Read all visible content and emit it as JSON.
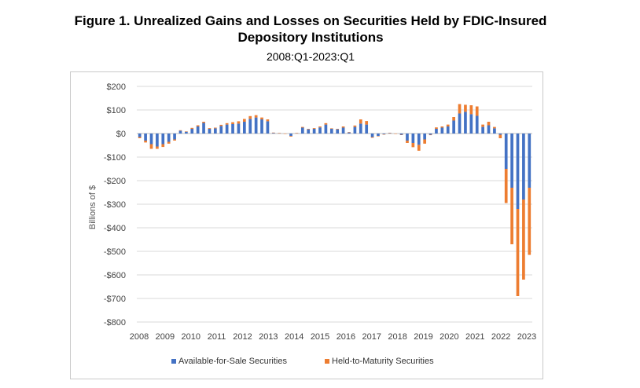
{
  "chart_data": {
    "type": "bar",
    "stacked": true,
    "title_line1": "Figure 1. Unrealized Gains and Losses on Securities Held by FDIC-Insured",
    "title_line2": "Depository Institutions",
    "subtitle": "2008:Q1-2023:Q1",
    "ylabel": "Billions of $",
    "ylim": [
      -800,
      200
    ],
    "yticks": [
      200,
      100,
      0,
      -100,
      -200,
      -300,
      -400,
      -500,
      -600,
      -700,
      -800
    ],
    "ytick_labels": [
      "$200",
      "$100",
      "$0",
      "-$100",
      "-$200",
      "-$300",
      "-$400",
      "-$500",
      "-$600",
      "-$700",
      "-$800"
    ],
    "x_labels": [
      "2008",
      "2009",
      "2010",
      "2011",
      "2012",
      "2013",
      "2014",
      "2015",
      "2016",
      "2017",
      "2018",
      "2019",
      "2020",
      "2021",
      "2022",
      "2023"
    ],
    "grid": true,
    "legend_position": "bottom",
    "colors": {
      "afs": "#4472C4",
      "htm": "#ED7D31",
      "grid": "#d9d9d9",
      "axis": "#bfbfbf"
    },
    "series": [
      {
        "name": "Available-for-Sale Securities",
        "values": [
          -15,
          -30,
          -45,
          -55,
          -45,
          -35,
          -25,
          12,
          8,
          20,
          30,
          45,
          20,
          22,
          32,
          38,
          40,
          42,
          50,
          62,
          68,
          60,
          52,
          3,
          2,
          0,
          -10,
          2,
          25,
          18,
          20,
          26,
          38,
          20,
          18,
          25,
          5,
          28,
          42,
          38,
          -15,
          -10,
          -3,
          2,
          0,
          -5,
          -30,
          -40,
          -48,
          -25,
          -5,
          20,
          25,
          30,
          55,
          85,
          92,
          82,
          75,
          28,
          35,
          22,
          -5,
          -150,
          -230,
          -320,
          -280,
          -230
        ]
      },
      {
        "name": "Held-to-Maturity Securities",
        "values": [
          -5,
          -8,
          -20,
          -10,
          -12,
          -8,
          -5,
          2,
          1,
          4,
          5,
          5,
          3,
          3,
          5,
          6,
          8,
          10,
          12,
          12,
          10,
          8,
          8,
          1,
          0,
          0,
          -3,
          0,
          3,
          2,
          3,
          4,
          6,
          2,
          2,
          5,
          1,
          6,
          18,
          15,
          -3,
          -2,
          0,
          1,
          0,
          -1,
          -10,
          -18,
          -25,
          -18,
          -2,
          6,
          5,
          8,
          15,
          40,
          30,
          38,
          40,
          10,
          15,
          6,
          -15,
          -145,
          -240,
          -370,
          -340,
          -285
        ]
      }
    ]
  }
}
